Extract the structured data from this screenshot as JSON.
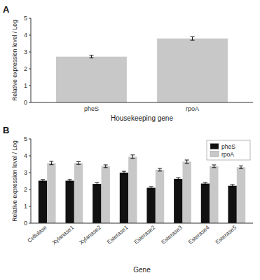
{
  "chart_data": [
    {
      "type": "bar",
      "title": "A",
      "categories": [
        "pheS",
        "rpoA"
      ],
      "values": [
        2.72,
        3.8
      ],
      "errors": [
        0.08,
        0.1
      ],
      "color": "#c8c8c8",
      "xlabel": "Housekeeping gene",
      "ylabel": "Relative expression level / Log",
      "ylim": [
        0,
        5
      ],
      "yticks": [
        0,
        1,
        2,
        3,
        4,
        5
      ],
      "grid": false
    },
    {
      "type": "bar",
      "title": "B",
      "categories": [
        "Cellulase",
        "Xylanase1",
        "Xylanase2",
        "Esterase1",
        "Esterase2",
        "Esterase3",
        "Esterase4",
        "Esterase5"
      ],
      "series": [
        {
          "name": "pheS",
          "color": "#111111",
          "values": [
            2.52,
            2.52,
            2.33,
            3.0,
            2.1,
            2.63,
            2.35,
            2.22
          ],
          "errors": [
            0.07,
            0.07,
            0.07,
            0.08,
            0.07,
            0.07,
            0.07,
            0.07
          ]
        },
        {
          "name": "rpoA",
          "color": "#c8c8c8",
          "values": [
            3.57,
            3.57,
            3.38,
            3.95,
            3.17,
            3.65,
            3.38,
            3.32
          ],
          "errors": [
            0.1,
            0.08,
            0.08,
            0.1,
            0.08,
            0.1,
            0.08,
            0.08
          ]
        }
      ],
      "xlabel": "Gene",
      "ylabel": "Relative expression level / Log",
      "ylim": [
        0,
        5
      ],
      "yticks": [
        0,
        1,
        2,
        3,
        4,
        5
      ],
      "grid": false,
      "legend": "upper right"
    }
  ]
}
